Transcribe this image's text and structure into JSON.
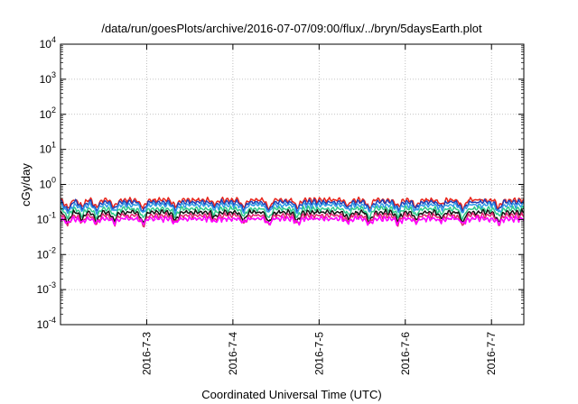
{
  "chart_data": {
    "type": "line",
    "title": "/data/run/goesPlots/archive/2016-07-07/09:00/flux/../bryn/5daysEarth.plot",
    "xlabel": "Coordinated Universal Time (UTC)",
    "ylabel": "cGy/day",
    "yscale": "log",
    "ylim": [
      0.0001,
      10000
    ],
    "xlim": [
      "2016-07-02 00:00",
      "2016-07-07 09:00"
    ],
    "grid": true,
    "x_ticks": [
      "2016-7-3",
      "2016-7-4",
      "2016-7-5",
      "2016-7-6",
      "2016-7-7"
    ],
    "y_ticks": [
      {
        "base": "10",
        "exp": "-4"
      },
      {
        "base": "10",
        "exp": "-3"
      },
      {
        "base": "10",
        "exp": "-2"
      },
      {
        "base": "10",
        "exp": "-1"
      },
      {
        "base": "10",
        "exp": "0"
      },
      {
        "base": "10",
        "exp": "1"
      },
      {
        "base": "10",
        "exp": "2"
      },
      {
        "base": "10",
        "exp": "3"
      },
      {
        "base": "10",
        "exp": "4"
      }
    ],
    "series": [
      {
        "color": "#e8241a",
        "level": 0.36,
        "dip": 0.75
      },
      {
        "color": "#1e3fb8",
        "level": 0.31,
        "dip": 0.75
      },
      {
        "color": "#2f9ae6",
        "level": 0.26,
        "dip": 0.7
      },
      {
        "color": "#2ecb8a",
        "level": 0.2,
        "dip": 0.78
      },
      {
        "color": "#111111",
        "level": 0.16,
        "dip": 0.85
      },
      {
        "color": "#e0256f",
        "level": 0.13,
        "dip": 0.85
      },
      {
        "color": "#ff00ff",
        "level": 0.105,
        "dip": 0.45
      }
    ],
    "dips": [
      {
        "t": "2016-07-02 02:00",
        "depth": 0.6
      },
      {
        "t": "2016-07-02 06:00",
        "depth": 0.45
      },
      {
        "t": "2016-07-02 10:00",
        "depth": 0.55
      },
      {
        "t": "2016-07-02 15:00",
        "depth": 0.5
      },
      {
        "t": "2016-07-02 23:00",
        "depth": 0.6
      },
      {
        "t": "2016-07-03 08:00",
        "depth": 0.5
      },
      {
        "t": "2016-07-03 19:00",
        "depth": 0.35
      },
      {
        "t": "2016-07-04 03:00",
        "depth": 0.5
      },
      {
        "t": "2016-07-04 10:00",
        "depth": 0.6
      },
      {
        "t": "2016-07-04 18:00",
        "depth": 0.55
      },
      {
        "t": "2016-07-05 08:00",
        "depth": 0.4
      },
      {
        "t": "2016-07-05 14:00",
        "depth": 0.55
      },
      {
        "t": "2016-07-05 22:00",
        "depth": 0.5
      },
      {
        "t": "2016-07-06 03:00",
        "depth": 0.45
      },
      {
        "t": "2016-07-06 10:00",
        "depth": 0.35
      },
      {
        "t": "2016-07-06 16:00",
        "depth": 0.6
      },
      {
        "t": "2016-07-07 02:00",
        "depth": 0.55
      }
    ]
  }
}
